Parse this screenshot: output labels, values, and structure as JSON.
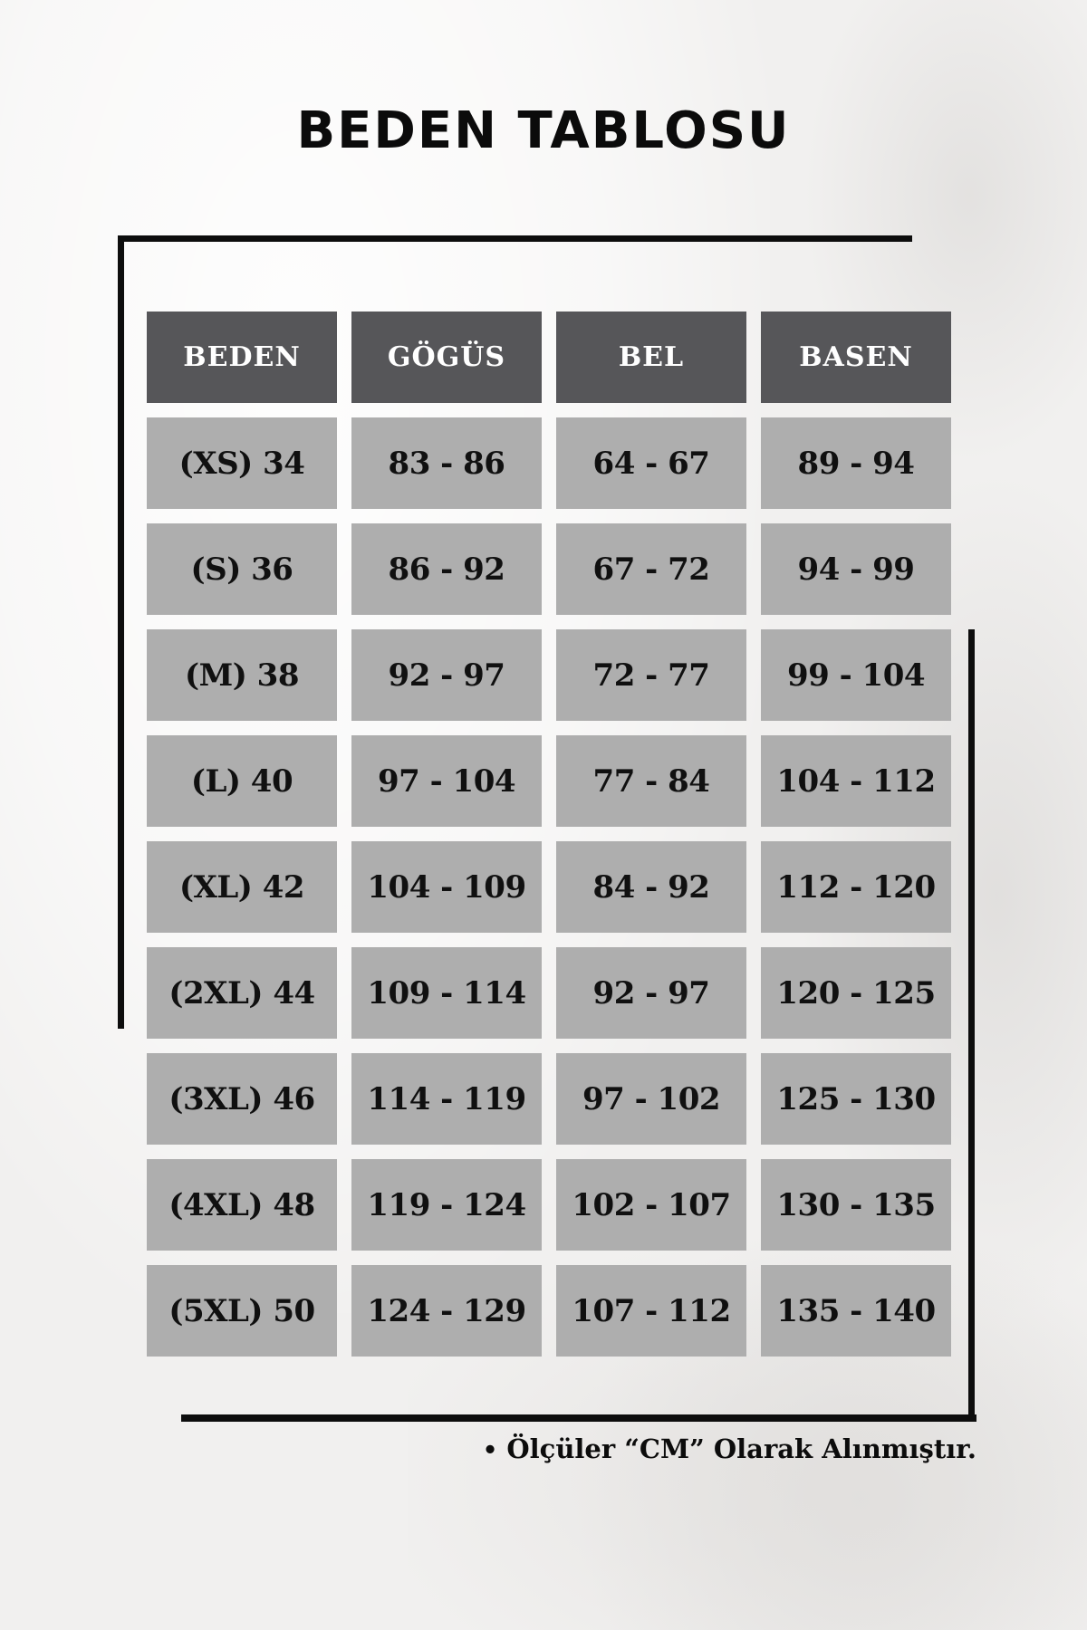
{
  "title": "BEDEN TABLOSU",
  "chart_data": {
    "type": "table",
    "title": "BEDEN TABLOSU",
    "columns": [
      "BEDEN",
      "GÖGÜS",
      "BEL",
      "BASEN"
    ],
    "rows": [
      [
        "(XS) 34",
        "83 - 86",
        "64 - 67",
        "89 - 94"
      ],
      [
        "(S) 36",
        "86 - 92",
        "67 - 72",
        "94 - 99"
      ],
      [
        "(M) 38",
        "92 - 97",
        "72 - 77",
        "99 - 104"
      ],
      [
        "(L) 40",
        "97 - 104",
        "77 - 84",
        "104 - 112"
      ],
      [
        "(XL) 42",
        "104 - 109",
        "84 - 92",
        "112 - 120"
      ],
      [
        "(2XL) 44",
        "109 - 114",
        "92 - 97",
        "120 - 125"
      ],
      [
        "(3XL) 46",
        "114 - 119",
        "97 - 102",
        "125 - 130"
      ],
      [
        "(4XL) 48",
        "119 - 124",
        "102 - 107",
        "130 - 135"
      ],
      [
        "(5XL) 50",
        "124 - 129",
        "107 - 112",
        "135 - 140"
      ]
    ],
    "units": "cm"
  },
  "footer": {
    "bullet": "•",
    "note": "Ölçüler “CM” Olarak Alınmıştır."
  },
  "colors": {
    "header_bg": "#565659",
    "cell_bg": "#aeaeae",
    "header_text": "#ffffff",
    "cell_text": "#101010",
    "frame": "#0d0d0d",
    "page_bg": "#f1f0ef"
  }
}
